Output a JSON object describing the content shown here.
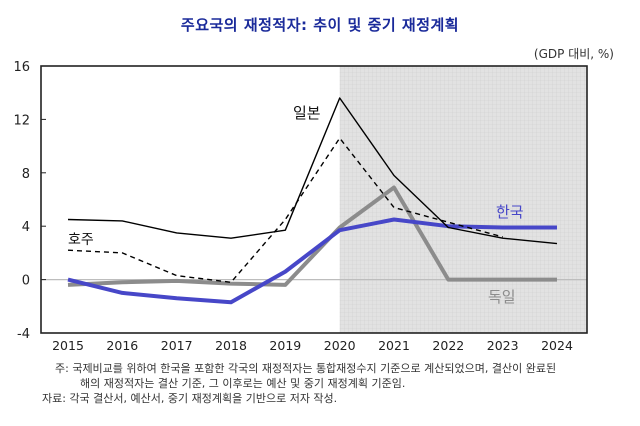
{
  "chart_data": {
    "type": "line",
    "title": "주요국의 재정적자: 추이 및 중기 재정계획",
    "unit_label": "(GDP 대비, %)",
    "xlabel": "",
    "ylabel": "",
    "x": [
      2015,
      2016,
      2017,
      2018,
      2019,
      2020,
      2021,
      2022,
      2023,
      2024
    ],
    "x_tick_labels": [
      "2015",
      "2016",
      "2017",
      "2018",
      "2019",
      "2020",
      "2021",
      "2022",
      "2023",
      "2024"
    ],
    "ylim": [
      -4,
      16
    ],
    "y_ticks": [
      -4,
      0,
      4,
      8,
      12,
      16
    ],
    "y_tick_labels": [
      "-4",
      "0",
      "4",
      "8",
      "12",
      "16"
    ],
    "shaded_region": {
      "from": 2020,
      "to": 2024.6,
      "meaning": "결산 이후 예산 및 중기 재정계획",
      "color": "#dcdcdc"
    },
    "grid": false,
    "series": [
      {
        "name": "일본",
        "label": "일본",
        "style": "solid",
        "color": "#000000",
        "values": [
          4.5,
          4.4,
          3.5,
          3.1,
          3.7,
          13.6,
          7.8,
          3.9,
          3.1,
          2.7
        ]
      },
      {
        "name": "호주",
        "label": "호주",
        "style": "dashed",
        "color": "#000000",
        "values": [
          2.2,
          2.0,
          0.3,
          -0.2,
          4.5,
          10.6,
          5.4,
          4.3,
          3.2,
          null
        ]
      },
      {
        "name": "한국",
        "label": "한국",
        "style": "solid-thick",
        "color": "#4747c8",
        "values": [
          0.0,
          -1.0,
          -1.4,
          -1.7,
          0.6,
          3.7,
          4.5,
          4.0,
          3.9,
          3.9
        ]
      },
      {
        "name": "독일",
        "label": "독일",
        "style": "solid-thick",
        "color": "#8c8c8c",
        "values": [
          -0.4,
          -0.2,
          -0.1,
          -0.3,
          -0.4,
          3.9,
          6.9,
          0.0,
          0.0,
          0.0
        ]
      }
    ]
  },
  "notes": {
    "note_line1": "주: 국제비교를 위하여 한국을 포함한 각국의 재정적자는 통합재정수지 기준으로 계산되었으며, 결산이 완료된",
    "note_line2": "해의 재정적자는 결산 기준, 그 이후로는 예산 및 중기 재정계획 기준임.",
    "source": "자료: 각국 결산서, 예산서, 중기 재정계획을 기반으로 저자 작성."
  }
}
